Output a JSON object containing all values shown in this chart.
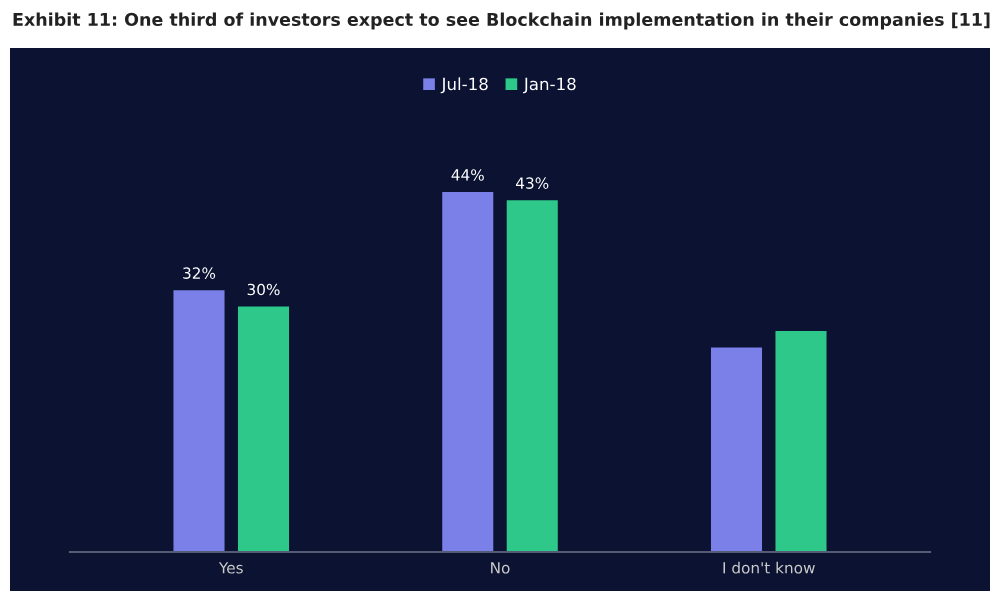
{
  "chart_data": {
    "type": "bar",
    "title": "Exhibit 11: One third of investors expect to see Blockchain implementation in their companies [11]",
    "categories": [
      "Yes",
      "No",
      "I don't know"
    ],
    "series": [
      {
        "name": "Jul-18",
        "color": "#7b7fe8",
        "values": [
          32,
          44,
          25
        ],
        "value_labels": [
          "32%",
          "44%",
          null
        ]
      },
      {
        "name": "Jan-18",
        "color": "#2ec98a",
        "values": [
          30,
          43,
          27
        ],
        "value_labels": [
          "30%",
          "43%",
          null
        ]
      }
    ],
    "legend": "top",
    "grid": false
  }
}
